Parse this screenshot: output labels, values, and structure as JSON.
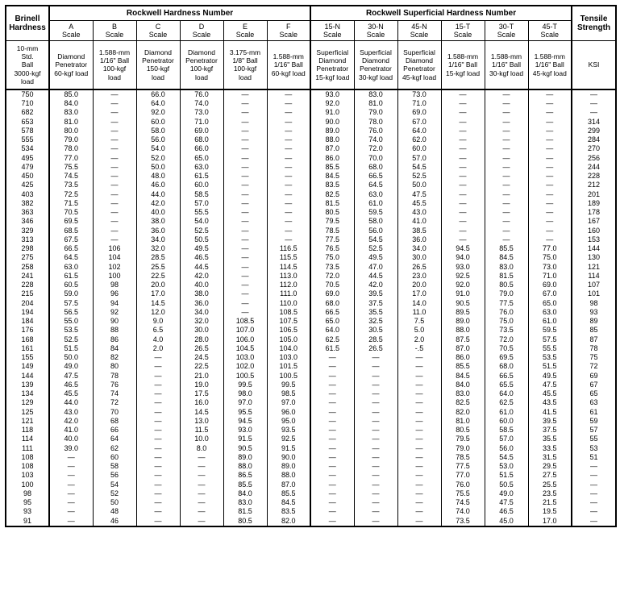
{
  "title_groups": [
    "Brinell Hardness",
    "Rockwell Hardness Number",
    "Rockwell Superficial Hardness Number",
    "Tensile Strength"
  ],
  "sub_headers": [
    "A Scale",
    "B Scale",
    "C Scale",
    "D Scale",
    "E Scale",
    "F Scale",
    "15-N Scale",
    "30-N Scale",
    "45-N Scale",
    "15-T Scale",
    "30-T Scale",
    "45-T Scale"
  ],
  "desc_left": "10-mm Std. Ball 3000-kgf load",
  "desc": [
    "Diamond Penetrator 60-kgf load",
    "1.588-mm 1/16\" Ball 100-kgf load",
    "Diamond Penetrator 150-kgf load",
    "Diamond Penetrator 100-kgf load",
    "3.175-mm 1/8\" Ball 100-kgf load",
    "1.588-mm 1/16\" Ball 60-kgf load",
    "Superficial Diamond Penetrator 15-kgf load",
    "Superficial Diamond Penetrator 30-kgf load",
    "Superficial Diamond Penetrator 45-kgf load",
    "1.588-mm 1/16\" Ball 15-kgf load",
    "1.588-mm 1/16\" Ball 30-kgf load",
    "1.588-mm 1/16\" Ball 45-kgf load"
  ],
  "desc_right": "KSI",
  "dash": "—",
  "rows": [
    [
      "750",
      "85.0",
      "—",
      "66.0",
      "76.0",
      "—",
      "—",
      "93.0",
      "83.0",
      "73.0",
      "—",
      "—",
      "—",
      "—"
    ],
    [
      "710",
      "84.0",
      "—",
      "64.0",
      "74.0",
      "—",
      "—",
      "92.0",
      "81.0",
      "71.0",
      "—",
      "—",
      "—",
      "—"
    ],
    [
      "682",
      "83.0",
      "—",
      "92.0",
      "73.0",
      "—",
      "—",
      "91.0",
      "79.0",
      "69.0",
      "—",
      "—",
      "—",
      "—"
    ],
    [
      "653",
      "81.0",
      "—",
      "60.0",
      "71.0",
      "—",
      "—",
      "90.0",
      "78.0",
      "67.0",
      "—",
      "—",
      "—",
      "314"
    ],
    [
      "578",
      "80.0",
      "—",
      "58.0",
      "69.0",
      "—",
      "—",
      "89.0",
      "76.0",
      "64.0",
      "—",
      "—",
      "—",
      "299"
    ],
    [
      "555",
      "79.0",
      "—",
      "56.0",
      "68.0",
      "—",
      "—",
      "88.0",
      "74.0",
      "62.0",
      "—",
      "—",
      "—",
      "284"
    ],
    [
      "534",
      "78.0",
      "—",
      "54.0",
      "66.0",
      "—",
      "—",
      "87.0",
      "72.0",
      "60.0",
      "—",
      "—",
      "—",
      "270"
    ],
    [
      "495",
      "77.0",
      "—",
      "52.0",
      "65.0",
      "—",
      "—",
      "86.0",
      "70.0",
      "57.0",
      "—",
      "—",
      "—",
      "256"
    ],
    [
      "479",
      "75.5",
      "—",
      "50.0",
      "63.0",
      "—",
      "—",
      "85.5",
      "68.0",
      "54.5",
      "—",
      "—",
      "—",
      "244"
    ],
    [
      "450",
      "74.5",
      "—",
      "48.0",
      "61.5",
      "—",
      "—",
      "84.5",
      "66.5",
      "52.5",
      "—",
      "—",
      "—",
      "228"
    ],
    [
      "425",
      "73.5",
      "—",
      "46.0",
      "60.0",
      "—",
      "—",
      "83.5",
      "64.5",
      "50.0",
      "—",
      "—",
      "—",
      "212"
    ],
    [
      "403",
      "72.5",
      "—",
      "44.0",
      "58.5",
      "—",
      "—",
      "82.5",
      "63.0",
      "47.5",
      "—",
      "—",
      "—",
      "201"
    ],
    [
      "382",
      "71.5",
      "—",
      "42.0",
      "57.0",
      "—",
      "—",
      "81.5",
      "61.0",
      "45.5",
      "—",
      "—",
      "—",
      "189"
    ],
    [
      "363",
      "70.5",
      "—",
      "40.0",
      "55.5",
      "—",
      "—",
      "80.5",
      "59.5",
      "43.0",
      "—",
      "—",
      "—",
      "178"
    ],
    [
      "346",
      "69.5",
      "—",
      "38.0",
      "54.0",
      "—",
      "—",
      "79.5",
      "58.0",
      "41.0",
      "—",
      "—",
      "—",
      "167"
    ],
    [
      "329",
      "68.5",
      "—",
      "36.0",
      "52.5",
      "—",
      "—",
      "78.5",
      "56.0",
      "38.5",
      "—",
      "—",
      "—",
      "160"
    ],
    [
      "313",
      "67.5",
      "—",
      "34.0",
      "50.5",
      "—",
      "—",
      "77.5",
      "54.5",
      "36.0",
      "—",
      "—",
      "—",
      "153"
    ],
    [
      "298",
      "66.5",
      "106",
      "32.0",
      "49.5",
      "—",
      "116.5",
      "76.5",
      "52.5",
      "34.0",
      "94.5",
      "85.5",
      "77.0",
      "144"
    ],
    [
      "275",
      "64.5",
      "104",
      "28.5",
      "46.5",
      "—",
      "115.5",
      "75.0",
      "49.5",
      "30.0",
      "94.0",
      "84.5",
      "75.0",
      "130"
    ],
    [
      "258",
      "63.0",
      "102",
      "25.5",
      "44.5",
      "—",
      "114.5",
      "73.5",
      "47.0",
      "26.5",
      "93.0",
      "83.0",
      "73.0",
      "121"
    ],
    [
      "241",
      "61.5",
      "100",
      "22.5",
      "42.0",
      "—",
      "113.0",
      "72.0",
      "44.5",
      "23.0",
      "92.5",
      "81.5",
      "71.0",
      "114"
    ],
    [
      "228",
      "60.5",
      "98",
      "20.0",
      "40.0",
      "—",
      "112.0",
      "70.5",
      "42.0",
      "20.0",
      "92.0",
      "80.5",
      "69.0",
      "107"
    ],
    [
      "215",
      "59.0",
      "96",
      "17.0",
      "38.0",
      "—",
      "111.0",
      "69.0",
      "39.5",
      "17.0",
      "91.0",
      "79.0",
      "67.0",
      "101"
    ],
    [
      "204",
      "57.5",
      "94",
      "14.5",
      "36.0",
      "—",
      "110.0",
      "68.0",
      "37.5",
      "14.0",
      "90.5",
      "77.5",
      "65.0",
      "98"
    ],
    [
      "194",
      "56.5",
      "92",
      "12.0",
      "34.0",
      "—",
      "108.5",
      "66.5",
      "35.5",
      "11.0",
      "89.5",
      "76.0",
      "63.0",
      "93"
    ],
    [
      "184",
      "55.0",
      "90",
      "9.0",
      "32.0",
      "108.5",
      "107.5",
      "65.0",
      "32.5",
      "7.5",
      "89.0",
      "75.0",
      "61.0",
      "89"
    ],
    [
      "176",
      "53.5",
      "88",
      "6.5",
      "30.0",
      "107.0",
      "106.5",
      "64.0",
      "30.5",
      "5.0",
      "88.0",
      "73.5",
      "59.5",
      "85"
    ],
    [
      "168",
      "52.5",
      "86",
      "4.0",
      "28.0",
      "106.0",
      "105.0",
      "62.5",
      "28.5",
      "2.0",
      "87.5",
      "72.0",
      "57.5",
      "87"
    ],
    [
      "161",
      "51.5",
      "84",
      "2.0",
      "26.5",
      "104.5",
      "104.0",
      "61.5",
      "26.5",
      "-.5",
      "87.0",
      "70.5",
      "55.5",
      "78"
    ],
    [
      "155",
      "50.0",
      "82",
      "—",
      "24.5",
      "103.0",
      "103.0",
      "—",
      "—",
      "—",
      "86.0",
      "69.5",
      "53.5",
      "75"
    ],
    [
      "149",
      "49.0",
      "80",
      "—",
      "22.5",
      "102.0",
      "101.5",
      "—",
      "—",
      "—",
      "85.5",
      "68.0",
      "51.5",
      "72"
    ],
    [
      "144",
      "47.5",
      "78",
      "—",
      "21.0",
      "100.5",
      "100.5",
      "—",
      "—",
      "—",
      "84.5",
      "66.5",
      "49.5",
      "69"
    ],
    [
      "139",
      "46.5",
      "76",
      "—",
      "19.0",
      "99.5",
      "99.5",
      "—",
      "—",
      "—",
      "84.0",
      "65.5",
      "47.5",
      "67"
    ],
    [
      "134",
      "45.5",
      "74",
      "—",
      "17.5",
      "98.0",
      "98.5",
      "—",
      "—",
      "—",
      "83.0",
      "64.0",
      "45.5",
      "65"
    ],
    [
      "129",
      "44.0",
      "72",
      "—",
      "16.0",
      "97.0",
      "97.0",
      "—",
      "—",
      "—",
      "82.5",
      "62.5",
      "43.5",
      "63"
    ],
    [
      "125",
      "43.0",
      "70",
      "—",
      "14.5",
      "95.5",
      "96.0",
      "—",
      "—",
      "—",
      "82.0",
      "61.0",
      "41.5",
      "61"
    ],
    [
      "121",
      "42.0",
      "68",
      "—",
      "13.0",
      "94.5",
      "95.0",
      "—",
      "—",
      "—",
      "81.0",
      "60.0",
      "39.5",
      "59"
    ],
    [
      "118",
      "41.0",
      "66",
      "—",
      "11.5",
      "93.0",
      "93.5",
      "—",
      "—",
      "—",
      "80.5",
      "58.5",
      "37.5",
      "57"
    ],
    [
      "114",
      "40.0",
      "64",
      "—",
      "10.0",
      "91.5",
      "92.5",
      "—",
      "—",
      "—",
      "79.5",
      "57.0",
      "35.5",
      "55"
    ],
    [
      "111",
      "39.0",
      "62",
      "—",
      "8.0",
      "90.5",
      "91.5",
      "—",
      "—",
      "—",
      "79.0",
      "56.0",
      "33.5",
      "53"
    ],
    [
      "108",
      "—",
      "60",
      "—",
      "—",
      "89.0",
      "90.0",
      "—",
      "—",
      "—",
      "78.5",
      "54.5",
      "31.5",
      "51"
    ],
    [
      "108",
      "—",
      "58",
      "—",
      "—",
      "88.0",
      "89.0",
      "—",
      "—",
      "—",
      "77.5",
      "53.0",
      "29.5",
      "—"
    ],
    [
      "103",
      "—",
      "56",
      "—",
      "—",
      "86.5",
      "88.0",
      "—",
      "—",
      "—",
      "77.0",
      "51.5",
      "27.5",
      "—"
    ],
    [
      "100",
      "—",
      "54",
      "—",
      "—",
      "85.5",
      "87.0",
      "—",
      "—",
      "—",
      "76.0",
      "50.5",
      "25.5",
      "—"
    ],
    [
      "98",
      "—",
      "52",
      "—",
      "—",
      "84.0",
      "85.5",
      "—",
      "—",
      "—",
      "75.5",
      "49.0",
      "23.5",
      "—"
    ],
    [
      "95",
      "—",
      "50",
      "—",
      "—",
      "83.0",
      "84.5",
      "—",
      "—",
      "—",
      "74.5",
      "47.5",
      "21.5",
      "—"
    ],
    [
      "93",
      "—",
      "48",
      "—",
      "—",
      "81.5",
      "83.5",
      "—",
      "—",
      "—",
      "74.0",
      "46.5",
      "19.5",
      "—"
    ],
    [
      "91",
      "—",
      "46",
      "—",
      "—",
      "80.5",
      "82.0",
      "—",
      "—",
      "—",
      "73.5",
      "45.0",
      "17.0",
      "—"
    ]
  ]
}
